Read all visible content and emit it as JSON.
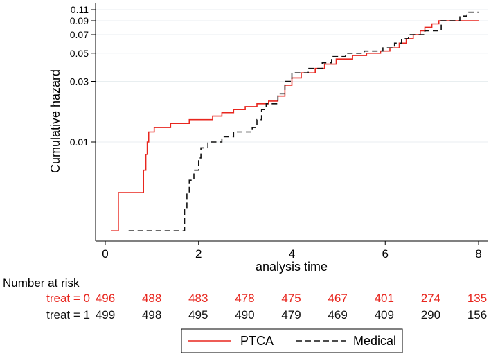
{
  "chart_data": {
    "type": "line",
    "xlabel": "analysis time",
    "ylabel": "Cumulative hazard",
    "xlim": [
      0,
      8
    ],
    "ylim": [
      0.0018,
      0.12
    ],
    "y_scale": "log",
    "x_ticks": [
      0,
      2,
      4,
      6,
      8
    ],
    "x_tick_labels": [
      "0",
      "2",
      "4",
      "6",
      "8"
    ],
    "y_ticks": [
      0.01,
      0.03,
      0.05,
      0.07,
      0.09,
      0.11
    ],
    "y_tick_labels": [
      "0.01",
      "0.03",
      "0.05",
      "0.07",
      "0.09",
      "0.11"
    ],
    "grid": "horizontal",
    "series": [
      {
        "name": "PTCA",
        "color": "#e8261e",
        "style": "solid",
        "points": [
          [
            0.12,
            0.002
          ],
          [
            0.28,
            0.002
          ],
          [
            0.28,
            0.004
          ],
          [
            0.82,
            0.004
          ],
          [
            0.82,
            0.006
          ],
          [
            0.87,
            0.006
          ],
          [
            0.87,
            0.008
          ],
          [
            0.9,
            0.008
          ],
          [
            0.9,
            0.01
          ],
          [
            0.93,
            0.01
          ],
          [
            0.93,
            0.012
          ],
          [
            1.05,
            0.012
          ],
          [
            1.05,
            0.013
          ],
          [
            1.4,
            0.013
          ],
          [
            1.4,
            0.014
          ],
          [
            1.8,
            0.014
          ],
          [
            1.8,
            0.015
          ],
          [
            2.3,
            0.015
          ],
          [
            2.3,
            0.016
          ],
          [
            2.5,
            0.016
          ],
          [
            2.5,
            0.017
          ],
          [
            2.75,
            0.017
          ],
          [
            2.75,
            0.018
          ],
          [
            3.0,
            0.018
          ],
          [
            3.0,
            0.019
          ],
          [
            3.25,
            0.019
          ],
          [
            3.25,
            0.02
          ],
          [
            3.5,
            0.02
          ],
          [
            3.5,
            0.021
          ],
          [
            3.7,
            0.021
          ],
          [
            3.7,
            0.023
          ],
          [
            3.85,
            0.023
          ],
          [
            3.85,
            0.028
          ],
          [
            4.0,
            0.028
          ],
          [
            4.0,
            0.032
          ],
          [
            4.2,
            0.032
          ],
          [
            4.2,
            0.035
          ],
          [
            4.5,
            0.035
          ],
          [
            4.5,
            0.038
          ],
          [
            4.7,
            0.038
          ],
          [
            4.7,
            0.041
          ],
          [
            4.95,
            0.041
          ],
          [
            4.95,
            0.045
          ],
          [
            5.3,
            0.045
          ],
          [
            5.3,
            0.048
          ],
          [
            5.6,
            0.048
          ],
          [
            5.6,
            0.05
          ],
          [
            5.9,
            0.05
          ],
          [
            5.9,
            0.052
          ],
          [
            6.1,
            0.052
          ],
          [
            6.1,
            0.055
          ],
          [
            6.3,
            0.055
          ],
          [
            6.3,
            0.06
          ],
          [
            6.45,
            0.06
          ],
          [
            6.45,
            0.065
          ],
          [
            6.6,
            0.065
          ],
          [
            6.6,
            0.07
          ],
          [
            6.75,
            0.07
          ],
          [
            6.75,
            0.075
          ],
          [
            6.85,
            0.075
          ],
          [
            6.85,
            0.08
          ],
          [
            7.0,
            0.08
          ],
          [
            7.0,
            0.085
          ],
          [
            7.15,
            0.085
          ],
          [
            7.15,
            0.09
          ],
          [
            8.0,
            0.09
          ]
        ]
      },
      {
        "name": "Medical",
        "color": "#111111",
        "style": "dashed",
        "points": [
          [
            0.5,
            0.002
          ],
          [
            1.7,
            0.002
          ],
          [
            1.7,
            0.003
          ],
          [
            1.75,
            0.003
          ],
          [
            1.75,
            0.004
          ],
          [
            1.8,
            0.004
          ],
          [
            1.8,
            0.005
          ],
          [
            1.9,
            0.005
          ],
          [
            1.9,
            0.006
          ],
          [
            2.0,
            0.006
          ],
          [
            2.0,
            0.0075
          ],
          [
            2.05,
            0.0075
          ],
          [
            2.05,
            0.009
          ],
          [
            2.2,
            0.009
          ],
          [
            2.2,
            0.01
          ],
          [
            2.5,
            0.01
          ],
          [
            2.5,
            0.011
          ],
          [
            2.75,
            0.011
          ],
          [
            2.75,
            0.012
          ],
          [
            3.15,
            0.012
          ],
          [
            3.15,
            0.013
          ],
          [
            3.25,
            0.013
          ],
          [
            3.25,
            0.015
          ],
          [
            3.35,
            0.015
          ],
          [
            3.35,
            0.018
          ],
          [
            3.45,
            0.018
          ],
          [
            3.45,
            0.02
          ],
          [
            3.7,
            0.02
          ],
          [
            3.7,
            0.024
          ],
          [
            3.85,
            0.024
          ],
          [
            3.85,
            0.03
          ],
          [
            4.0,
            0.03
          ],
          [
            4.0,
            0.035
          ],
          [
            4.35,
            0.035
          ],
          [
            4.35,
            0.038
          ],
          [
            4.65,
            0.038
          ],
          [
            4.65,
            0.042
          ],
          [
            4.85,
            0.042
          ],
          [
            4.85,
            0.047
          ],
          [
            5.15,
            0.047
          ],
          [
            5.15,
            0.05
          ],
          [
            5.55,
            0.05
          ],
          [
            5.55,
            0.052
          ],
          [
            5.95,
            0.052
          ],
          [
            5.95,
            0.055
          ],
          [
            6.2,
            0.055
          ],
          [
            6.2,
            0.06
          ],
          [
            6.35,
            0.06
          ],
          [
            6.35,
            0.065
          ],
          [
            6.5,
            0.065
          ],
          [
            6.5,
            0.07
          ],
          [
            6.85,
            0.07
          ],
          [
            6.85,
            0.075
          ],
          [
            7.2,
            0.075
          ],
          [
            7.2,
            0.09
          ],
          [
            7.6,
            0.09
          ],
          [
            7.6,
            0.098
          ],
          [
            7.75,
            0.098
          ],
          [
            7.75,
            0.105
          ],
          [
            8.0,
            0.105
          ]
        ]
      }
    ],
    "risk_table": {
      "title": "Number at risk",
      "rows": [
        {
          "label": "treat = 0",
          "color": "#e8261e",
          "values": [
            "496",
            "488",
            "483",
            "478",
            "475",
            "467",
            "401",
            "274",
            "135"
          ]
        },
        {
          "label": "treat = 1",
          "color": "#111111",
          "values": [
            "499",
            "498",
            "495",
            "490",
            "479",
            "469",
            "409",
            "290",
            "156"
          ]
        }
      ]
    },
    "legend": {
      "position": "bottom",
      "entries": [
        {
          "label": "PTCA",
          "color": "#e8261e",
          "style": "solid"
        },
        {
          "label": "Medical",
          "color": "#111111",
          "style": "dashed"
        }
      ]
    }
  }
}
